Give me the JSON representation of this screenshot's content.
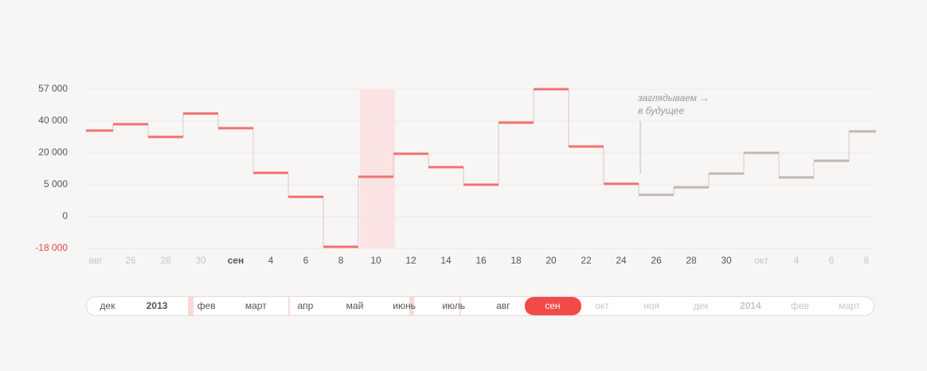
{
  "chart_data": {
    "type": "step",
    "categories": [
      "авг",
      "26",
      "28",
      "30",
      "сен",
      "4",
      "6",
      "8",
      "10",
      "12",
      "14",
      "16",
      "18",
      "20",
      "22",
      "24",
      "26",
      "28",
      "30",
      "окт",
      "4",
      "6",
      "8"
    ],
    "series": [
      {
        "color": "#f07272",
        "values": [
          34000,
          38000,
          30000,
          44000,
          35500,
          10600,
          3100,
          -17100,
          8750,
          19600,
          13250,
          5000,
          39000,
          57000,
          24000,
          5400,
          null,
          null,
          null,
          null,
          null,
          null,
          null
        ]
      },
      {
        "color": "#bdb9b4",
        "values": [
          null,
          null,
          null,
          null,
          null,
          null,
          null,
          null,
          null,
          null,
          null,
          null,
          null,
          null,
          null,
          null,
          3400,
          4600,
          10250,
          20000,
          8400,
          16250,
          33500
        ]
      }
    ],
    "ylim": [
      -18000,
      57000
    ],
    "yticks": [
      {
        "value": -18000,
        "label": "-18 000"
      },
      0,
      {
        "value": 5000,
        "label": "5 000"
      },
      {
        "value": 20000,
        "label": "20 000"
      },
      {
        "value": 40000,
        "label": "40 000"
      },
      {
        "value": 57000,
        "label": "57 000"
      }
    ],
    "grid": true,
    "annotation": [
      "заглядываем  →",
      "в будущее"
    ]
  },
  "timeline": {
    "items": [
      "дек",
      "2013",
      "фев",
      "март",
      "апр",
      "май",
      "июнь",
      "июль",
      "авг",
      "сен",
      "окт",
      "ноя",
      "дек",
      "2014",
      "фев",
      "март"
    ],
    "selected_index": 9
  }
}
